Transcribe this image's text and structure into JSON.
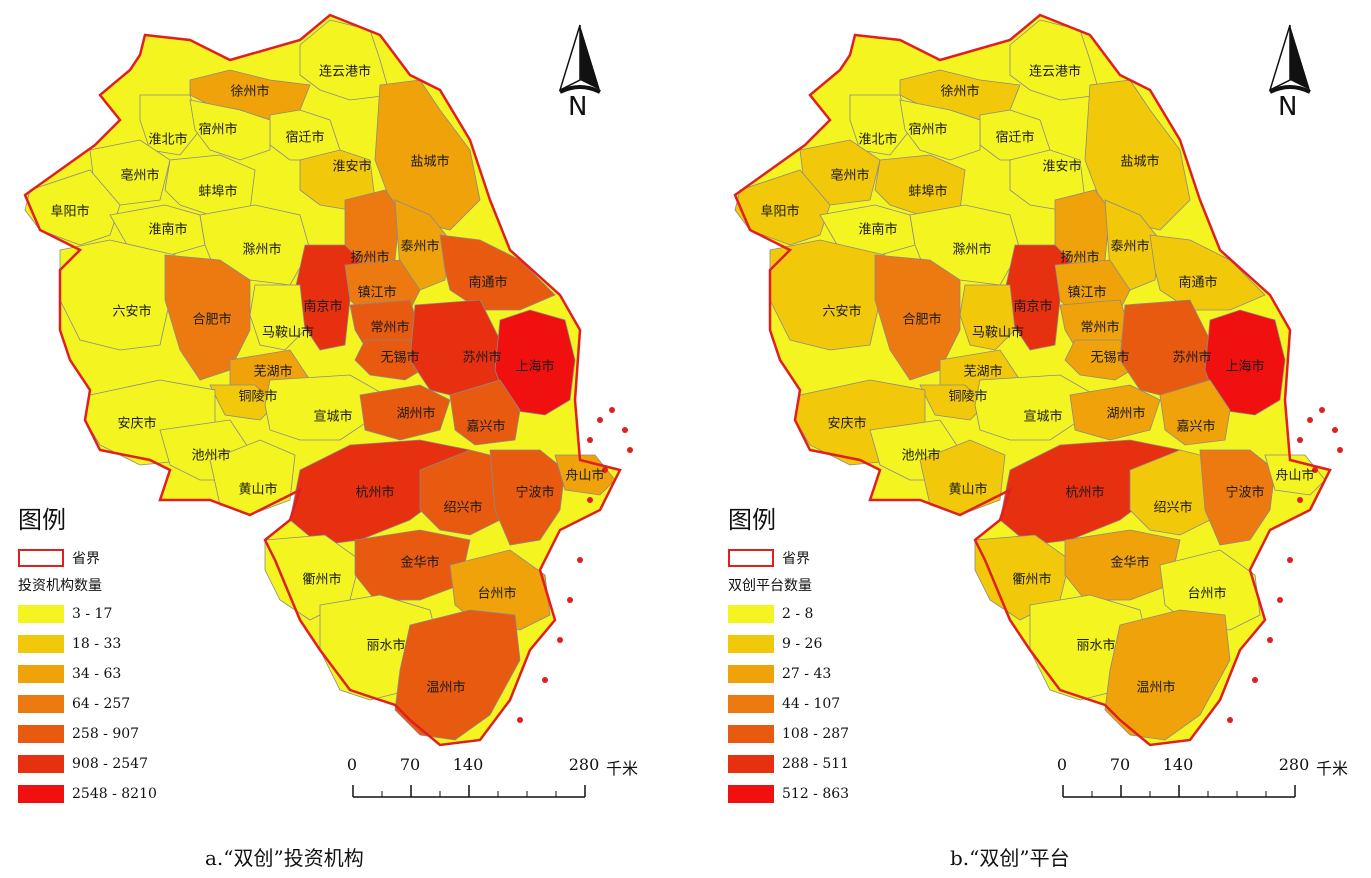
{
  "panels": [
    {
      "caption": "a.“双创”投资机构",
      "legend_title": "图例",
      "legend_boundary": "省界",
      "legend_subtitle": "投资机构数量",
      "classes": [
        {
          "label": "3 - 17",
          "color": "#f4f421"
        },
        {
          "label": "18 - 33",
          "color": "#f2c80a"
        },
        {
          "label": "34 - 63",
          "color": "#f0a20a"
        },
        {
          "label": "64 - 257",
          "color": "#ec7a10"
        },
        {
          "label": "258 - 907",
          "color": "#e85a10"
        },
        {
          "label": "908 - 2547",
          "color": "#e63010"
        },
        {
          "label": "2548 - 8210",
          "color": "#f01010"
        }
      ],
      "cities": [
        {
          "name": "连云港市",
          "class": 0
        },
        {
          "name": "徐州市",
          "class": 2
        },
        {
          "name": "宿迁市",
          "class": 0
        },
        {
          "name": "淮北市",
          "class": 0
        },
        {
          "name": "宿州市",
          "class": 0
        },
        {
          "name": "亳州市",
          "class": 0
        },
        {
          "name": "蚌埠市",
          "class": 0
        },
        {
          "name": "淮安市",
          "class": 1
        },
        {
          "name": "盐城市",
          "class": 2
        },
        {
          "name": "阜阳市",
          "class": 0
        },
        {
          "name": "淮南市",
          "class": 0
        },
        {
          "name": "滁州市",
          "class": 0
        },
        {
          "name": "扬州市",
          "class": 3
        },
        {
          "name": "泰州市",
          "class": 2
        },
        {
          "name": "南通市",
          "class": 4
        },
        {
          "name": "六安市",
          "class": 0
        },
        {
          "name": "合肥市",
          "class": 3
        },
        {
          "name": "南京市",
          "class": 5
        },
        {
          "name": "镇江市",
          "class": 3
        },
        {
          "name": "马鞍山市",
          "class": 0
        },
        {
          "name": "常州市",
          "class": 4
        },
        {
          "name": "无锡市",
          "class": 4
        },
        {
          "name": "苏州市",
          "class": 5
        },
        {
          "name": "上海市",
          "class": 6
        },
        {
          "name": "芜湖市",
          "class": 2
        },
        {
          "name": "铜陵市",
          "class": 1
        },
        {
          "name": "安庆市",
          "class": 0
        },
        {
          "name": "宣城市",
          "class": 0
        },
        {
          "name": "湖州市",
          "class": 4
        },
        {
          "name": "嘉兴市",
          "class": 4
        },
        {
          "name": "池州市",
          "class": 0
        },
        {
          "name": "黄山市",
          "class": 0
        },
        {
          "name": "杭州市",
          "class": 5
        },
        {
          "name": "绍兴市",
          "class": 4
        },
        {
          "name": "宁波市",
          "class": 4
        },
        {
          "name": "舟山市",
          "class": 2
        },
        {
          "name": "衢州市",
          "class": 0
        },
        {
          "name": "金华市",
          "class": 4
        },
        {
          "name": "台州市",
          "class": 2
        },
        {
          "name": "丽水市",
          "class": 0
        },
        {
          "name": "温州市",
          "class": 4
        }
      ]
    },
    {
      "caption": "b.“双创”平台",
      "legend_title": "图例",
      "legend_boundary": "省界",
      "legend_subtitle": "双创平台数量",
      "classes": [
        {
          "label": "2 - 8",
          "color": "#f4f421"
        },
        {
          "label": "9 - 26",
          "color": "#f2c80a"
        },
        {
          "label": "27 - 43",
          "color": "#f0a20a"
        },
        {
          "label": "44 - 107",
          "color": "#ec7a10"
        },
        {
          "label": "108 - 287",
          "color": "#e85a10"
        },
        {
          "label": "288 - 511",
          "color": "#e63010"
        },
        {
          "label": "512 - 863",
          "color": "#f01010"
        }
      ],
      "cities": [
        {
          "name": "连云港市",
          "class": 0
        },
        {
          "name": "徐州市",
          "class": 1
        },
        {
          "name": "宿迁市",
          "class": 0
        },
        {
          "name": "淮北市",
          "class": 0
        },
        {
          "name": "宿州市",
          "class": 0
        },
        {
          "name": "亳州市",
          "class": 1
        },
        {
          "name": "蚌埠市",
          "class": 1
        },
        {
          "name": "淮安市",
          "class": 0
        },
        {
          "name": "盐城市",
          "class": 1
        },
        {
          "name": "阜阳市",
          "class": 1
        },
        {
          "name": "淮南市",
          "class": 0
        },
        {
          "name": "滁州市",
          "class": 0
        },
        {
          "name": "扬州市",
          "class": 2
        },
        {
          "name": "泰州市",
          "class": 1
        },
        {
          "name": "南通市",
          "class": 1
        },
        {
          "name": "六安市",
          "class": 1
        },
        {
          "name": "合肥市",
          "class": 3
        },
        {
          "name": "南京市",
          "class": 5
        },
        {
          "name": "镇江市",
          "class": 2
        },
        {
          "name": "马鞍山市",
          "class": 1
        },
        {
          "name": "常州市",
          "class": 2
        },
        {
          "name": "无锡市",
          "class": 2
        },
        {
          "name": "苏州市",
          "class": 4
        },
        {
          "name": "上海市",
          "class": 6
        },
        {
          "name": "芜湖市",
          "class": 1
        },
        {
          "name": "铜陵市",
          "class": 1
        },
        {
          "name": "安庆市",
          "class": 1
        },
        {
          "name": "宣城市",
          "class": 0
        },
        {
          "name": "湖州市",
          "class": 2
        },
        {
          "name": "嘉兴市",
          "class": 2
        },
        {
          "name": "池州市",
          "class": 0
        },
        {
          "name": "黄山市",
          "class": 1
        },
        {
          "name": "杭州市",
          "class": 5
        },
        {
          "name": "绍兴市",
          "class": 1
        },
        {
          "name": "宁波市",
          "class": 3
        },
        {
          "name": "舟山市",
          "class": 0
        },
        {
          "name": "衢州市",
          "class": 1
        },
        {
          "name": "金华市",
          "class": 2
        },
        {
          "name": "台州市",
          "class": 0
        },
        {
          "name": "丽水市",
          "class": 0
        },
        {
          "name": "温州市",
          "class": 2
        }
      ]
    }
  ],
  "scale": {
    "ticks": [
      "0",
      "70",
      "140",
      "280"
    ],
    "unit": "千米"
  },
  "north_label": "N",
  "colors": {
    "boundary": "#e02020",
    "inner_border": "#8a8a8a"
  }
}
